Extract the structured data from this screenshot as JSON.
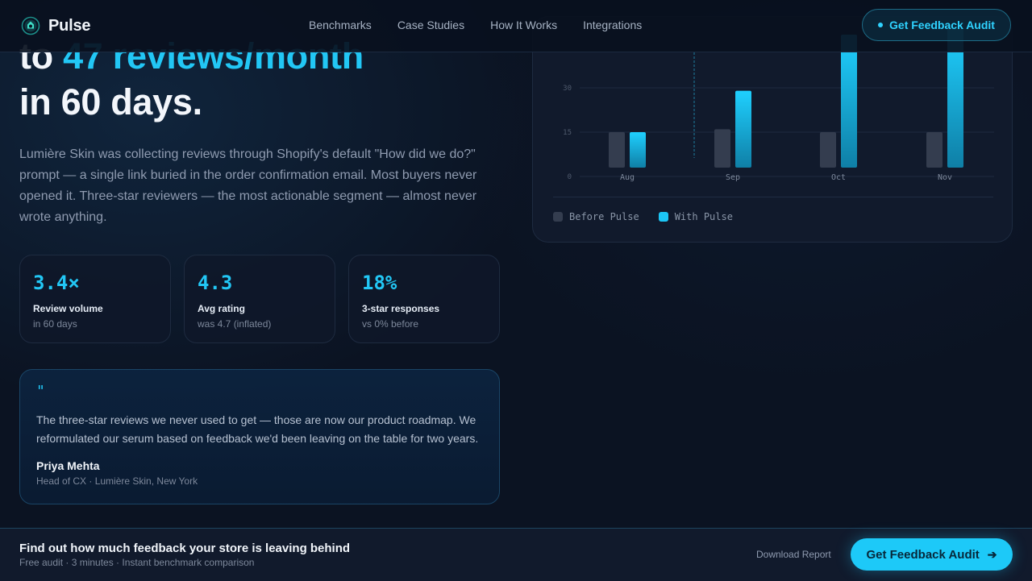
{
  "brand": {
    "name": "Pulse",
    "accent": "#22c7f5"
  },
  "nav": {
    "links": [
      "Benchmarks",
      "Case Studies",
      "How It Works",
      "Integrations"
    ],
    "cta": "Get Feedback Audit"
  },
  "hero": {
    "line1_prefix": "to ",
    "line1_accent": "47 reviews/month",
    "line2": "in 60 days.",
    "description": "Lumière Skin was collecting reviews through Shopify's default \"How did we do?\" prompt — a single link buried in the order confirmation email. Most buyers never opened it. Three-star reviewers — the most actionable segment — almost never wrote anything."
  },
  "stats": [
    {
      "value": "3.4×",
      "label": "Review volume",
      "sub": "in 60 days"
    },
    {
      "value": "4.3",
      "label": "Avg rating",
      "sub": "was 4.7 (inflated)"
    },
    {
      "value": "18%",
      "label": "3-star responses",
      "sub": "vs 0% before"
    }
  ],
  "quote": {
    "mark": "\"",
    "text": "The three-star reviews we never used to get — those are now our product roadmap. We reformulated our serum based on feedback we'd been leaving on the table for two years.",
    "author": "Priya Mehta",
    "role": "Head of CX · Lumière Skin, New York"
  },
  "chart_data": {
    "type": "bar",
    "categories": [
      "Aug",
      "Sep",
      "Oct",
      "Nov"
    ],
    "series": [
      {
        "name": "Before Pulse",
        "values": [
          12,
          13,
          12,
          12
        ],
        "color": "#343d4f"
      },
      {
        "name": "With Pulse",
        "values": [
          12,
          26,
          45,
          47
        ],
        "color": "#1cc6f5"
      }
    ],
    "y_ticks": [
      "0",
      "15",
      "30"
    ],
    "grid": true,
    "legend": "bottom-left"
  },
  "bottom_bar": {
    "title": "Find out how much feedback your store is leaving behind",
    "subtitle": "Free audit · 3 minutes · Instant benchmark comparison",
    "download": "Download Report",
    "cta": "Get Feedback Audit",
    "arrow_icon": "arrow-right-icon"
  }
}
